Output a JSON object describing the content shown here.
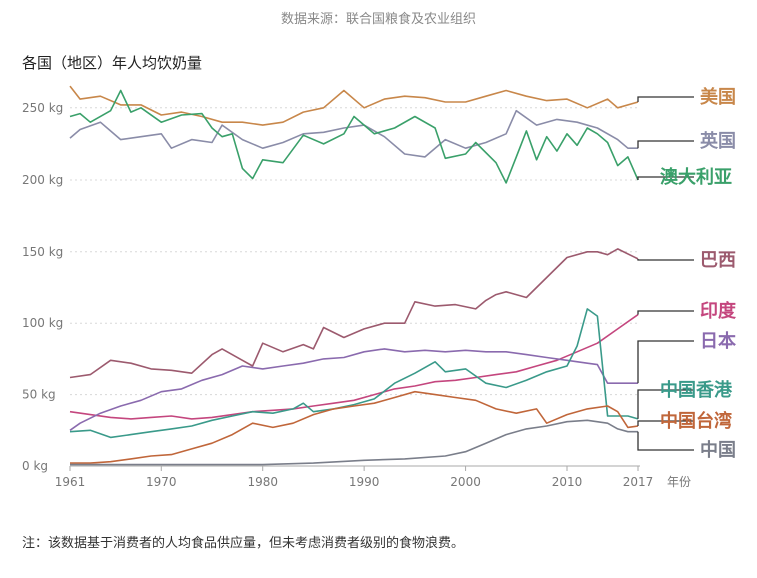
{
  "source_text": "数据来源：联合国粮食及农业组织",
  "note_text": "注：该数据基于消费者的人均食品供应量，但未考虑消费者级别的食物浪费。",
  "chart_data": {
    "type": "line",
    "title": "各国（地区）年人均饮奶量",
    "xlabel": "年份",
    "ylabel": "",
    "x_ticks": [
      1961,
      1970,
      1980,
      1990,
      2000,
      2010,
      2017
    ],
    "y_ticks": [
      {
        "value": 0,
        "label": "0 kg"
      },
      {
        "value": 50,
        "label": "50 kg"
      },
      {
        "value": 100,
        "label": "100 kg"
      },
      {
        "value": 150,
        "label": "150 kg"
      },
      {
        "value": 200,
        "label": "200 kg"
      },
      {
        "value": 250,
        "label": "250 kg"
      }
    ],
    "ylim": [
      0,
      270
    ],
    "y_axis_break": [
      155,
      195
    ],
    "xlim": [
      1961,
      2017
    ],
    "grid": "horizontal dotted",
    "legend": "right end labels",
    "series": [
      {
        "name": "美国",
        "color": "#c8874a",
        "points": [
          [
            1961,
            265
          ],
          [
            1962,
            256
          ],
          [
            1964,
            258
          ],
          [
            1966,
            252
          ],
          [
            1968,
            252
          ],
          [
            1970,
            245
          ],
          [
            1972,
            247
          ],
          [
            1974,
            244
          ],
          [
            1976,
            240
          ],
          [
            1978,
            240
          ],
          [
            1980,
            238
          ],
          [
            1982,
            240
          ],
          [
            1984,
            247
          ],
          [
            1986,
            250
          ],
          [
            1988,
            262
          ],
          [
            1990,
            250
          ],
          [
            1992,
            256
          ],
          [
            1994,
            258
          ],
          [
            1996,
            257
          ],
          [
            1998,
            254
          ],
          [
            2000,
            254
          ],
          [
            2002,
            258
          ],
          [
            2004,
            262
          ],
          [
            2006,
            258
          ],
          [
            2008,
            255
          ],
          [
            2010,
            256
          ],
          [
            2012,
            250
          ],
          [
            2014,
            256
          ],
          [
            2015,
            250
          ],
          [
            2017,
            254
          ]
        ]
      },
      {
        "name": "英国",
        "color": "#8a8ca8",
        "points": [
          [
            1961,
            229
          ],
          [
            1962,
            235
          ],
          [
            1964,
            240
          ],
          [
            1966,
            228
          ],
          [
            1968,
            230
          ],
          [
            1970,
            232
          ],
          [
            1971,
            222
          ],
          [
            1973,
            228
          ],
          [
            1975,
            226
          ],
          [
            1976,
            238
          ],
          [
            1978,
            228
          ],
          [
            1980,
            222
          ],
          [
            1982,
            226
          ],
          [
            1984,
            232
          ],
          [
            1986,
            233
          ],
          [
            1988,
            236
          ],
          [
            1990,
            238
          ],
          [
            1992,
            230
          ],
          [
            1994,
            218
          ],
          [
            1996,
            216
          ],
          [
            1998,
            228
          ],
          [
            2000,
            222
          ],
          [
            2002,
            226
          ],
          [
            2004,
            232
          ],
          [
            2005,
            248
          ],
          [
            2007,
            238
          ],
          [
            2009,
            242
          ],
          [
            2011,
            240
          ],
          [
            2013,
            236
          ],
          [
            2015,
            228
          ],
          [
            2016,
            222
          ],
          [
            2017,
            222
          ]
        ]
      },
      {
        "name": "澳大利亚",
        "color": "#3aa06a",
        "points": [
          [
            1961,
            244
          ],
          [
            1962,
            246
          ],
          [
            1963,
            240
          ],
          [
            1965,
            248
          ],
          [
            1966,
            262
          ],
          [
            1967,
            247
          ],
          [
            1968,
            250
          ],
          [
            1970,
            240
          ],
          [
            1972,
            245
          ],
          [
            1974,
            246
          ],
          [
            1975,
            236
          ],
          [
            1976,
            230
          ],
          [
            1977,
            232
          ],
          [
            1978,
            208
          ],
          [
            1979,
            201
          ],
          [
            1980,
            214
          ],
          [
            1982,
            212
          ],
          [
            1984,
            231
          ],
          [
            1986,
            225
          ],
          [
            1988,
            232
          ],
          [
            1989,
            244
          ],
          [
            1991,
            232
          ],
          [
            1993,
            236
          ],
          [
            1995,
            244
          ],
          [
            1997,
            236
          ],
          [
            1998,
            215
          ],
          [
            2000,
            218
          ],
          [
            2001,
            226
          ],
          [
            2003,
            212
          ],
          [
            2004,
            198
          ],
          [
            2005,
            216
          ],
          [
            2006,
            234
          ],
          [
            2007,
            214
          ],
          [
            2008,
            230
          ],
          [
            2009,
            220
          ],
          [
            2010,
            232
          ],
          [
            2011,
            224
          ],
          [
            2012,
            236
          ],
          [
            2013,
            232
          ],
          [
            2014,
            226
          ],
          [
            2015,
            210
          ],
          [
            2016,
            216
          ],
          [
            2017,
            200
          ]
        ]
      },
      {
        "name": "巴西",
        "color": "#9c5a6e",
        "points": [
          [
            1961,
            62
          ],
          [
            1963,
            64
          ],
          [
            1965,
            74
          ],
          [
            1967,
            72
          ],
          [
            1969,
            68
          ],
          [
            1971,
            67
          ],
          [
            1973,
            65
          ],
          [
            1975,
            78
          ],
          [
            1976,
            82
          ],
          [
            1978,
            74
          ],
          [
            1979,
            70
          ],
          [
            1980,
            86
          ],
          [
            1982,
            80
          ],
          [
            1984,
            85
          ],
          [
            1985,
            82
          ],
          [
            1986,
            97
          ],
          [
            1988,
            90
          ],
          [
            1990,
            96
          ],
          [
            1992,
            100
          ],
          [
            1994,
            100
          ],
          [
            1995,
            115
          ],
          [
            1997,
            112
          ],
          [
            1999,
            113
          ],
          [
            2001,
            110
          ],
          [
            2002,
            116
          ],
          [
            2003,
            120
          ],
          [
            2004,
            122
          ],
          [
            2006,
            118
          ],
          [
            2008,
            132
          ],
          [
            2010,
            146
          ],
          [
            2012,
            150
          ],
          [
            2013,
            150
          ],
          [
            2014,
            148
          ],
          [
            2015,
            152
          ],
          [
            2017,
            145
          ]
        ]
      },
      {
        "name": "印度",
        "color": "#c4467e",
        "points": [
          [
            1961,
            38
          ],
          [
            1963,
            36
          ],
          [
            1965,
            34
          ],
          [
            1967,
            33
          ],
          [
            1969,
            34
          ],
          [
            1971,
            35
          ],
          [
            1973,
            33
          ],
          [
            1975,
            34
          ],
          [
            1977,
            36
          ],
          [
            1979,
            38
          ],
          [
            1981,
            39
          ],
          [
            1983,
            40
          ],
          [
            1985,
            42
          ],
          [
            1987,
            44
          ],
          [
            1989,
            46
          ],
          [
            1991,
            50
          ],
          [
            1993,
            54
          ],
          [
            1995,
            56
          ],
          [
            1997,
            59
          ],
          [
            1999,
            60
          ],
          [
            2001,
            62
          ],
          [
            2003,
            64
          ],
          [
            2005,
            66
          ],
          [
            2007,
            70
          ],
          [
            2009,
            74
          ],
          [
            2011,
            80
          ],
          [
            2013,
            86
          ],
          [
            2015,
            96
          ],
          [
            2017,
            106
          ]
        ]
      },
      {
        "name": "日本",
        "color": "#8a6aae",
        "points": [
          [
            1961,
            25
          ],
          [
            1962,
            30
          ],
          [
            1964,
            37
          ],
          [
            1966,
            42
          ],
          [
            1968,
            46
          ],
          [
            1970,
            52
          ],
          [
            1972,
            54
          ],
          [
            1974,
            60
          ],
          [
            1976,
            64
          ],
          [
            1978,
            70
          ],
          [
            1980,
            68
          ],
          [
            1982,
            70
          ],
          [
            1984,
            72
          ],
          [
            1986,
            75
          ],
          [
            1988,
            76
          ],
          [
            1990,
            80
          ],
          [
            1992,
            82
          ],
          [
            1994,
            80
          ],
          [
            1996,
            81
          ],
          [
            1998,
            80
          ],
          [
            2000,
            81
          ],
          [
            2002,
            80
          ],
          [
            2004,
            80
          ],
          [
            2006,
            78
          ],
          [
            2008,
            76
          ],
          [
            2010,
            74
          ],
          [
            2012,
            72
          ],
          [
            2013,
            71
          ],
          [
            2014,
            58
          ],
          [
            2016,
            58
          ],
          [
            2017,
            58
          ]
        ]
      },
      {
        "name": "中国香港",
        "color": "#3a9a8a",
        "points": [
          [
            1961,
            24
          ],
          [
            1963,
            25
          ],
          [
            1965,
            20
          ],
          [
            1967,
            22
          ],
          [
            1969,
            24
          ],
          [
            1971,
            26
          ],
          [
            1973,
            28
          ],
          [
            1975,
            32
          ],
          [
            1977,
            35
          ],
          [
            1979,
            38
          ],
          [
            1981,
            37
          ],
          [
            1983,
            40
          ],
          [
            1984,
            44
          ],
          [
            1985,
            38
          ],
          [
            1987,
            40
          ],
          [
            1989,
            43
          ],
          [
            1991,
            47
          ],
          [
            1993,
            58
          ],
          [
            1995,
            65
          ],
          [
            1997,
            73
          ],
          [
            1998,
            66
          ],
          [
            2000,
            68
          ],
          [
            2002,
            58
          ],
          [
            2004,
            55
          ],
          [
            2006,
            60
          ],
          [
            2008,
            66
          ],
          [
            2010,
            70
          ],
          [
            2011,
            84
          ],
          [
            2012,
            110
          ],
          [
            2013,
            105
          ],
          [
            2014,
            35
          ],
          [
            2016,
            35
          ],
          [
            2017,
            33
          ]
        ]
      },
      {
        "name": "中国台湾",
        "color": "#c0663a",
        "points": [
          [
            1961,
            2
          ],
          [
            1963,
            2
          ],
          [
            1965,
            3
          ],
          [
            1967,
            5
          ],
          [
            1969,
            7
          ],
          [
            1971,
            8
          ],
          [
            1973,
            12
          ],
          [
            1975,
            16
          ],
          [
            1977,
            22
          ],
          [
            1979,
            30
          ],
          [
            1981,
            27
          ],
          [
            1983,
            30
          ],
          [
            1985,
            36
          ],
          [
            1987,
            40
          ],
          [
            1989,
            42
          ],
          [
            1991,
            44
          ],
          [
            1993,
            48
          ],
          [
            1995,
            52
          ],
          [
            1997,
            50
          ],
          [
            1999,
            48
          ],
          [
            2001,
            46
          ],
          [
            2003,
            40
          ],
          [
            2005,
            37
          ],
          [
            2007,
            40
          ],
          [
            2008,
            30
          ],
          [
            2010,
            36
          ],
          [
            2012,
            40
          ],
          [
            2014,
            42
          ],
          [
            2015,
            38
          ],
          [
            2016,
            27
          ],
          [
            2017,
            28
          ]
        ]
      },
      {
        "name": "中国",
        "color": "#7a7e8a",
        "points": [
          [
            1961,
            1
          ],
          [
            1965,
            1
          ],
          [
            1970,
            1
          ],
          [
            1975,
            1
          ],
          [
            1980,
            1
          ],
          [
            1985,
            2
          ],
          [
            1990,
            4
          ],
          [
            1994,
            5
          ],
          [
            1998,
            7
          ],
          [
            2000,
            10
          ],
          [
            2002,
            16
          ],
          [
            2004,
            22
          ],
          [
            2006,
            26
          ],
          [
            2008,
            28
          ],
          [
            2010,
            31
          ],
          [
            2012,
            32
          ],
          [
            2014,
            30
          ],
          [
            2015,
            26
          ],
          [
            2016,
            24
          ],
          [
            2017,
            24
          ]
        ]
      }
    ]
  }
}
